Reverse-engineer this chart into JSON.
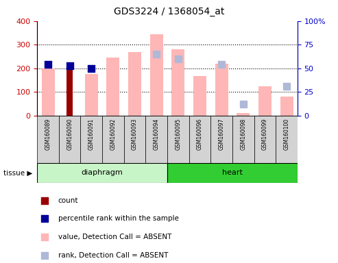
{
  "title": "GDS3224 / 1368054_at",
  "samples": [
    "GSM160089",
    "GSM160090",
    "GSM160091",
    "GSM160092",
    "GSM160093",
    "GSM160094",
    "GSM160095",
    "GSM160096",
    "GSM160097",
    "GSM160098",
    "GSM160099",
    "GSM160100"
  ],
  "tissue_groups": [
    {
      "label": "diaphragm",
      "start": 0,
      "end": 6,
      "color": "#c8f5c8"
    },
    {
      "label": "heart",
      "start": 6,
      "end": 12,
      "color": "#32cd32"
    }
  ],
  "value_absent": [
    200,
    null,
    175,
    245,
    270,
    345,
    280,
    167,
    220,
    12,
    123,
    82
  ],
  "rank_absent_pct": [
    null,
    null,
    null,
    null,
    null,
    65,
    60,
    null,
    54,
    12,
    null,
    31
  ],
  "count": [
    null,
    205,
    null,
    null,
    null,
    null,
    null,
    null,
    null,
    null,
    null,
    null
  ],
  "percentile_rank_pct": [
    54,
    53,
    50,
    null,
    null,
    null,
    null,
    null,
    null,
    null,
    null,
    null
  ],
  "ylim_left": [
    0,
    400
  ],
  "ylim_right": [
    0,
    100
  ],
  "left_ticks": [
    0,
    100,
    200,
    300,
    400
  ],
  "right_ticks": [
    0,
    25,
    50,
    75,
    100
  ],
  "colors": {
    "count_bar": "#990000",
    "percentile_bar": "#000099",
    "value_absent_bar": "#ffb6b6",
    "rank_absent_square": "#b0b8d8",
    "axis_left_color": "#cc0000",
    "axis_right_color": "#0000cc"
  }
}
